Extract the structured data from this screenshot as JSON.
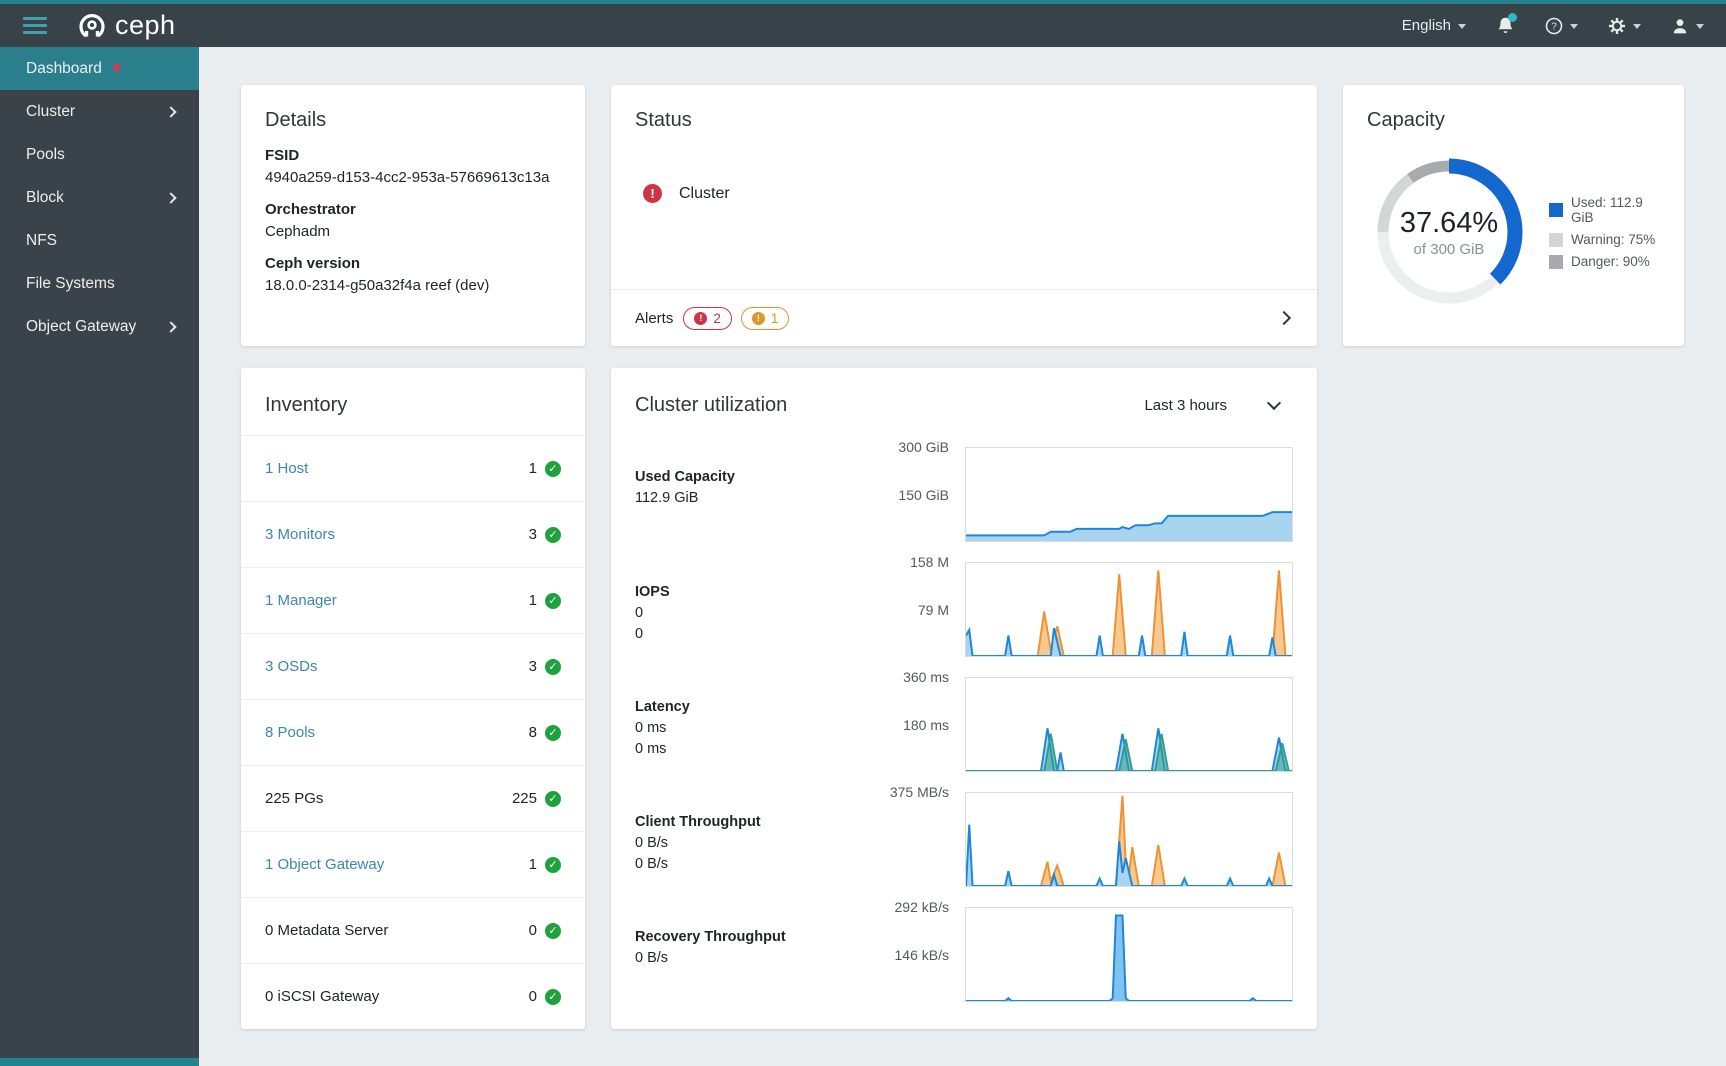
{
  "navbar": {
    "brand": "ceph",
    "language_label": "English"
  },
  "icons": {
    "check": "✓",
    "exclamation": "!",
    "heart": "♥",
    "help": "?"
  },
  "sidebar": {
    "items": [
      {
        "label": "Dashboard"
      },
      {
        "label": "Cluster"
      },
      {
        "label": "Pools"
      },
      {
        "label": "Block"
      },
      {
        "label": "NFS"
      },
      {
        "label": "File Systems"
      },
      {
        "label": "Object Gateway"
      }
    ]
  },
  "details": {
    "title": "Details",
    "fields": [
      {
        "label": "FSID",
        "value": "4940a259-d153-4cc2-953a-57669613c13a"
      },
      {
        "label": "Orchestrator",
        "value": "Cephadm"
      },
      {
        "label": "Ceph version",
        "value": "18.0.0-2314-g50a32f4a reef (dev)"
      }
    ]
  },
  "status": {
    "title": "Status",
    "health_label": "Cluster",
    "alerts_label": "Alerts",
    "alert_badges": [
      {
        "count": "2",
        "color": "#cd3544"
      },
      {
        "count": "1",
        "color": "#e0942c"
      }
    ]
  },
  "capacity": {
    "title": "Capacity",
    "percent_label": "37.64%",
    "subtitle": "of 300 GiB",
    "used_percent": 37.64,
    "warning_percent": 75,
    "danger_percent": 90,
    "colors": {
      "used": "#1467cc",
      "unused": "#eceeef",
      "warning": "#d3d5d7",
      "danger": "#a7abae"
    },
    "legend": [
      {
        "label": "Used: 112.9 GiB",
        "color": "#1467cc"
      },
      {
        "label": "Warning: 75%",
        "color": "#d3d5d7"
      },
      {
        "label": "Danger: 90%",
        "color": "#a7abae"
      }
    ]
  },
  "inventory": {
    "title": "Inventory",
    "rows": [
      {
        "label": "1 Host",
        "link": true,
        "count": "1"
      },
      {
        "label": "3 Monitors",
        "link": true,
        "count": "3"
      },
      {
        "label": "1 Manager",
        "link": true,
        "count": "1"
      },
      {
        "label": "3 OSDs",
        "link": true,
        "count": "3"
      },
      {
        "label": "8 Pools",
        "link": true,
        "count": "8"
      },
      {
        "label": "225 PGs",
        "link": false,
        "count": "225"
      },
      {
        "label": "1 Object Gateway",
        "link": true,
        "count": "1"
      },
      {
        "label": "0 Metadata Server",
        "link": false,
        "count": "0"
      },
      {
        "label": "0 iSCSI Gateway",
        "link": false,
        "count": "0"
      }
    ]
  },
  "utilization": {
    "title": "Cluster utilization",
    "range_label": "Last 3 hours",
    "charts": [
      {
        "title": "Used Capacity",
        "values": [
          "112.9 GiB"
        ],
        "axis_top": "300 GiB",
        "axis_mid": "150 GiB",
        "series": [
          {
            "color": "#1e87dc",
            "fill": "#a9d4ef",
            "points": [
              [
                0,
                6
              ],
              [
                24,
                6
              ],
              [
                26,
                10
              ],
              [
                32,
                10
              ],
              [
                34,
                13
              ],
              [
                47,
                13
              ],
              [
                48,
                15
              ],
              [
                50,
                13
              ],
              [
                52,
                17
              ],
              [
                56,
                17
              ],
              [
                58,
                19
              ],
              [
                60,
                19
              ],
              [
                62,
                27
              ],
              [
                91,
                27
              ],
              [
                94,
                31
              ],
              [
                100,
                31
              ]
            ]
          }
        ]
      },
      {
        "title": "IOPS",
        "values": [
          "0",
          "0"
        ],
        "axis_top": "158 M",
        "axis_mid": "79 M",
        "series": [
          {
            "color": "#ef9234",
            "fill": "#f7c98e",
            "points": [
              [
                0,
                0
              ],
              [
                22,
                0
              ],
              [
                24,
                48
              ],
              [
                26,
                6
              ],
              [
                28,
                32
              ],
              [
                30,
                0
              ],
              [
                45,
                0
              ],
              [
                47,
                88
              ],
              [
                49,
                0
              ],
              [
                57,
                0
              ],
              [
                59,
                92
              ],
              [
                61,
                0
              ],
              [
                94,
                0
              ],
              [
                96,
                92
              ],
              [
                98,
                0
              ],
              [
                100,
                0
              ]
            ]
          },
          {
            "color": "#1e87dc",
            "fill": "#a9d4ef",
            "points": [
              [
                0,
                22
              ],
              [
                1,
                28
              ],
              [
                2,
                0
              ],
              [
                12,
                0
              ],
              [
                13,
                22
              ],
              [
                14,
                0
              ],
              [
                26,
                0
              ],
              [
                27,
                30
              ],
              [
                29,
                0
              ],
              [
                40,
                0
              ],
              [
                41,
                22
              ],
              [
                42,
                0
              ],
              [
                53,
                0
              ],
              [
                54,
                22
              ],
              [
                55,
                0
              ],
              [
                66,
                0
              ],
              [
                67,
                26
              ],
              [
                68,
                0
              ],
              [
                80,
                0
              ],
              [
                81,
                22
              ],
              [
                82,
                0
              ],
              [
                93,
                0
              ],
              [
                94,
                20
              ],
              [
                95,
                0
              ],
              [
                100,
                0
              ]
            ]
          }
        ]
      },
      {
        "title": "Latency",
        "values": [
          "0 ms",
          "0 ms"
        ],
        "axis_top": "360 ms",
        "axis_mid": "180 ms",
        "series": [
          {
            "color": "#1e87dc",
            "fill": "#a9d4ef",
            "points": [
              [
                0,
                0
              ],
              [
                23,
                0
              ],
              [
                25,
                46
              ],
              [
                27,
                0
              ],
              [
                28,
                0
              ],
              [
                29,
                20
              ],
              [
                30,
                0
              ],
              [
                46,
                0
              ],
              [
                48,
                40
              ],
              [
                50,
                0
              ],
              [
                57,
                0
              ],
              [
                59,
                46
              ],
              [
                61,
                0
              ],
              [
                94,
                0
              ],
              [
                96,
                36
              ],
              [
                98,
                0
              ],
              [
                100,
                0
              ]
            ]
          },
          {
            "color": "#2f9e8e",
            "fill": "rgba(47,158,142,0.55)",
            "points": [
              [
                0,
                0
              ],
              [
                24,
                0
              ],
              [
                26,
                40
              ],
              [
                28,
                0
              ],
              [
                47,
                0
              ],
              [
                49,
                34
              ],
              [
                51,
                0
              ],
              [
                58,
                0
              ],
              [
                60,
                40
              ],
              [
                62,
                0
              ],
              [
                95,
                0
              ],
              [
                97,
                30
              ],
              [
                99,
                0
              ],
              [
                100,
                0
              ]
            ]
          }
        ]
      },
      {
        "title": "Client Throughput",
        "values": [
          "0 B/s",
          "0 B/s"
        ],
        "axis_top": "375 MB/s",
        "axis_mid": "",
        "series": [
          {
            "color": "#ef9234",
            "fill": "#f7c98e",
            "points": [
              [
                0,
                0
              ],
              [
                23,
                0
              ],
              [
                25,
                26
              ],
              [
                26,
                5
              ],
              [
                28,
                22
              ],
              [
                30,
                0
              ],
              [
                46,
                0
              ],
              [
                48,
                97
              ],
              [
                49,
                25
              ],
              [
                50,
                12
              ],
              [
                51,
                42
              ],
              [
                53,
                0
              ],
              [
                57,
                0
              ],
              [
                59,
                44
              ],
              [
                61,
                0
              ],
              [
                94,
                0
              ],
              [
                96,
                36
              ],
              [
                98,
                0
              ],
              [
                100,
                0
              ]
            ]
          },
          {
            "color": "#1e87dc",
            "fill": "#a9d4ef",
            "points": [
              [
                0,
                0
              ],
              [
                1,
                66
              ],
              [
                2,
                0
              ],
              [
                12,
                0
              ],
              [
                13,
                16
              ],
              [
                14,
                0
              ],
              [
                26,
                0
              ],
              [
                27,
                12
              ],
              [
                28,
                0
              ],
              [
                40,
                0
              ],
              [
                41,
                8
              ],
              [
                42,
                0
              ],
              [
                46,
                0
              ],
              [
                47,
                48
              ],
              [
                48,
                14
              ],
              [
                49,
                30
              ],
              [
                51,
                0
              ],
              [
                66,
                0
              ],
              [
                67,
                8
              ],
              [
                68,
                0
              ],
              [
                80,
                0
              ],
              [
                81,
                8
              ],
              [
                82,
                0
              ],
              [
                92,
                0
              ],
              [
                93,
                8
              ],
              [
                94,
                0
              ],
              [
                100,
                0
              ]
            ]
          }
        ]
      },
      {
        "title": "Recovery Throughput",
        "values": [
          "0 B/s"
        ],
        "axis_top": "292 kB/s",
        "axis_mid": "146 kB/s",
        "series": [
          {
            "color": "#1e87dc",
            "fill": "#7fc4ee",
            "points": [
              [
                0,
                0
              ],
              [
                12,
                0
              ],
              [
                13,
                3
              ],
              [
                14,
                0
              ],
              [
                44,
                0
              ],
              [
                45,
                3
              ],
              [
                46,
                92
              ],
              [
                48,
                92
              ],
              [
                49,
                3
              ],
              [
                50,
                0
              ],
              [
                87,
                0
              ],
              [
                88,
                3
              ],
              [
                89,
                0
              ],
              [
                100,
                0
              ]
            ]
          }
        ]
      }
    ]
  }
}
